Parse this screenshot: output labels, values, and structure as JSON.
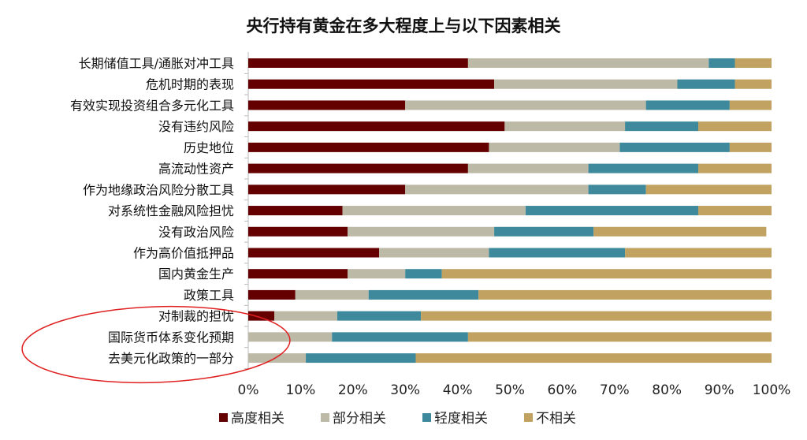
{
  "chart_data": {
    "type": "bar",
    "orientation": "horizontal",
    "stacked": true,
    "title": "央行持有黄金在多大程度上与以下因素相关",
    "categories": [
      "长期储值工具/通胀对冲工具",
      "危机时期的表现",
      "有效实现投资组合多元化工具",
      "没有违约风险",
      "历史地位",
      "高流动性资产",
      "作为地缘政治风险分散工具",
      "对系统性金融风险担忧",
      "没有政治风险",
      "作为高价值抵押品",
      "国内黄金生产",
      "政策工具",
      "对制裁的担忧",
      "国际货币体系变化预期",
      "去美元化政策的一部分"
    ],
    "series": [
      {
        "name": "高度相关",
        "color": "#650000",
        "values": [
          42,
          47,
          30,
          49,
          46,
          42,
          30,
          18,
          19,
          25,
          19,
          9,
          5,
          0,
          0
        ]
      },
      {
        "name": "部分相关",
        "color": "#bdb9a7",
        "values": [
          46,
          35,
          46,
          23,
          25,
          23,
          35,
          35,
          28,
          21,
          11,
          14,
          12,
          16,
          11
        ]
      },
      {
        "name": "轻度相关",
        "color": "#3e8a9c",
        "values": [
          5,
          11,
          16,
          14,
          21,
          21,
          11,
          33,
          19,
          26,
          7,
          21,
          16,
          26,
          21
        ]
      },
      {
        "name": "不相关",
        "color": "#c1a261",
        "values": [
          7,
          7,
          8,
          14,
          8,
          14,
          24,
          14,
          33,
          28,
          63,
          56,
          67,
          58,
          68
        ]
      }
    ],
    "xlim": [
      0,
      100
    ],
    "x_tick_labels": [
      "0%",
      "10%",
      "20%",
      "30%",
      "40%",
      "50%",
      "60%",
      "70%",
      "80%",
      "90%",
      "100%"
    ],
    "grid": false,
    "legend_position": "bottom",
    "annotation": {
      "shape": "ellipse",
      "color": "#e02020",
      "highlights": [
        "对制裁的担忧",
        "国际货币体系变化预期",
        "去美元化政策的一部分"
      ]
    }
  }
}
